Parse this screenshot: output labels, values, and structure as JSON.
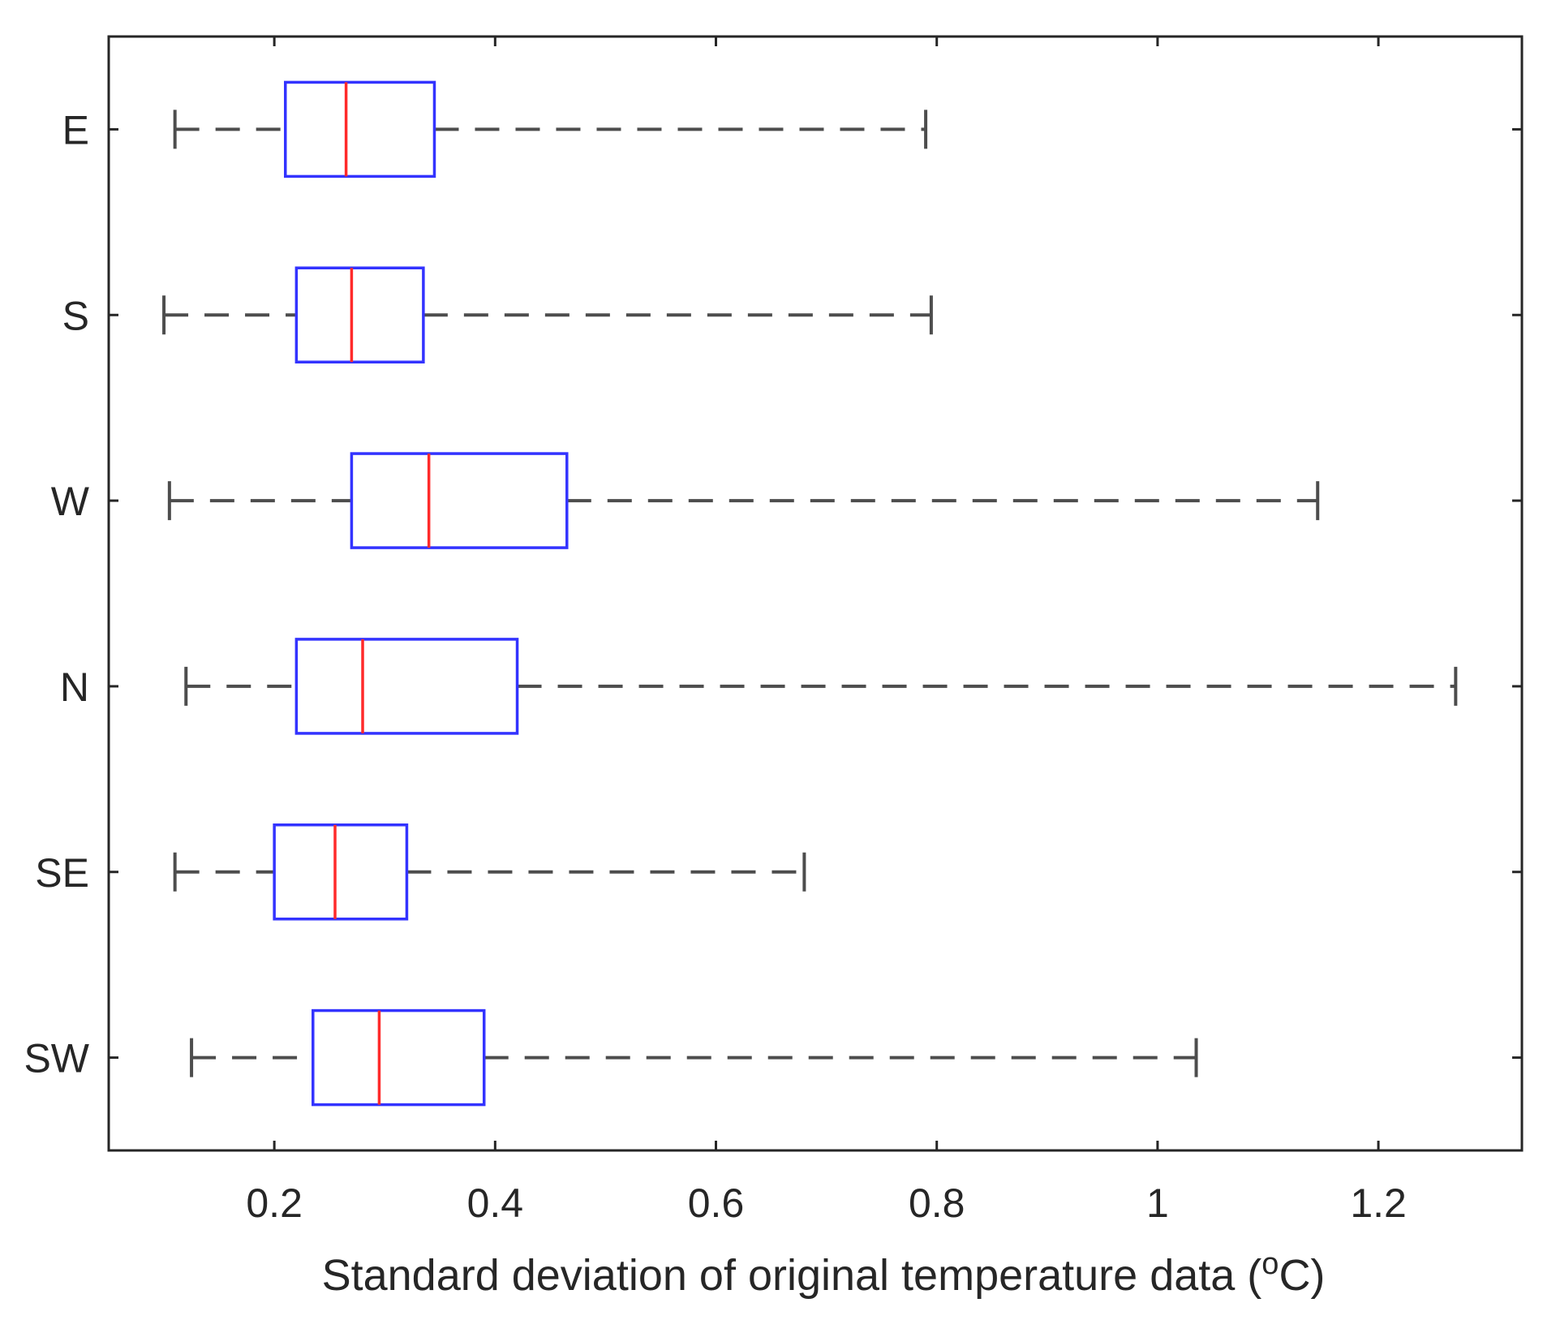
{
  "chart_data": {
    "type": "boxplot",
    "orientation": "horizontal",
    "title": "",
    "xlabel": {
      "main": "Standard deviation of original temperature data (",
      "sup": "o",
      "unit": "C)"
    },
    "ylabel": "",
    "xlim": [
      0.05,
      1.33
    ],
    "x_ticks": [
      0.2,
      0.4,
      0.6,
      0.8,
      1,
      1.2
    ],
    "x_tick_labels": [
      "0.2",
      "0.4",
      "0.6",
      "0.8",
      "1",
      "1.2"
    ],
    "grid": false,
    "legend": "none",
    "colors": {
      "box": "#3333ff",
      "median": "#ff2a2a",
      "whisker": "#4d4d4d",
      "axes": "#262626"
    },
    "categories": [
      "E",
      "S",
      "W",
      "N",
      "SE",
      "SW"
    ],
    "boxes": [
      {
        "label": "E",
        "whisker_low": 0.11,
        "q1": 0.21,
        "median": 0.265,
        "q3": 0.345,
        "whisker_high": 0.79
      },
      {
        "label": "S",
        "whisker_low": 0.1,
        "q1": 0.22,
        "median": 0.27,
        "q3": 0.335,
        "whisker_high": 0.795
      },
      {
        "label": "W",
        "whisker_low": 0.105,
        "q1": 0.27,
        "median": 0.34,
        "q3": 0.465,
        "whisker_high": 1.145
      },
      {
        "label": "N",
        "whisker_low": 0.12,
        "q1": 0.22,
        "median": 0.28,
        "q3": 0.42,
        "whisker_high": 1.27
      },
      {
        "label": "SE",
        "whisker_low": 0.11,
        "q1": 0.2,
        "median": 0.255,
        "q3": 0.32,
        "whisker_high": 0.68
      },
      {
        "label": "SW",
        "whisker_low": 0.125,
        "q1": 0.235,
        "median": 0.295,
        "q3": 0.39,
        "whisker_high": 1.035
      }
    ]
  }
}
